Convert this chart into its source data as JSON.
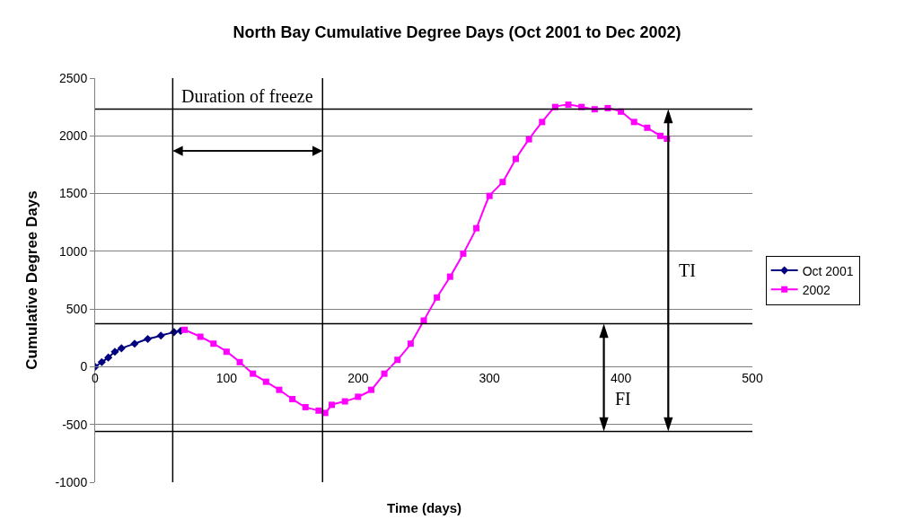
{
  "chart_data": {
    "type": "line",
    "title": "North Bay Cumulative Degree Days (Oct 2001 to Dec 2002)",
    "xlabel": "Time (days)",
    "ylabel": "Cumulative Degree Days",
    "series": [
      {
        "name": "Oct 2001",
        "color": "#000080",
        "marker": "diamond",
        "x": [
          0,
          5,
          10,
          15,
          20,
          30,
          40,
          50,
          60,
          65
        ],
        "values": [
          0,
          40,
          80,
          130,
          160,
          200,
          240,
          270,
          300,
          310
        ]
      },
      {
        "name": "2002",
        "color": "#ff00ff",
        "marker": "square",
        "x": [
          68,
          80,
          90,
          100,
          110,
          120,
          130,
          140,
          150,
          160,
          170,
          175,
          180,
          190,
          200,
          210,
          220,
          230,
          240,
          250,
          260,
          270,
          280,
          290,
          300,
          310,
          320,
          330,
          340,
          350,
          360,
          370,
          380,
          390,
          400,
          410,
          420,
          430,
          435
        ],
        "values": [
          320,
          260,
          200,
          130,
          40,
          -60,
          -130,
          -200,
          -280,
          -350,
          -380,
          -400,
          -330,
          -300,
          -260,
          -200,
          -60,
          60,
          200,
          400,
          600,
          780,
          980,
          1200,
          1480,
          1600,
          1800,
          1970,
          2120,
          2250,
          2270,
          2250,
          2230,
          2240,
          2210,
          2120,
          2070,
          2000,
          1975
        ]
      }
    ],
    "xlim": [
      0,
      500
    ],
    "xticks": [
      0,
      100,
      200,
      300,
      400,
      500
    ],
    "ylim": [
      -1000,
      2500
    ],
    "yticks": [
      -1000,
      -500,
      0,
      500,
      1000,
      1500,
      2000,
      2500
    ],
    "grid": "y",
    "legend": "right",
    "ref_lines": [
      {
        "axis": "y",
        "value": 373,
        "color": "#000000"
      },
      {
        "axis": "y",
        "value": -560,
        "color": "#000000"
      },
      {
        "axis": "y",
        "value": 2232,
        "color": "#000000"
      },
      {
        "axis": "x",
        "value": 59,
        "color": "#000000"
      },
      {
        "axis": "x",
        "value": 173,
        "color": "#000000"
      },
      {
        "axis": "x",
        "value": 387,
        "label": "FI",
        "color": "#000000"
      },
      {
        "axis": "x",
        "value": 436,
        "label": "TI",
        "color": "#000000"
      }
    ],
    "annotations": [
      "Duration of freeze"
    ]
  }
}
